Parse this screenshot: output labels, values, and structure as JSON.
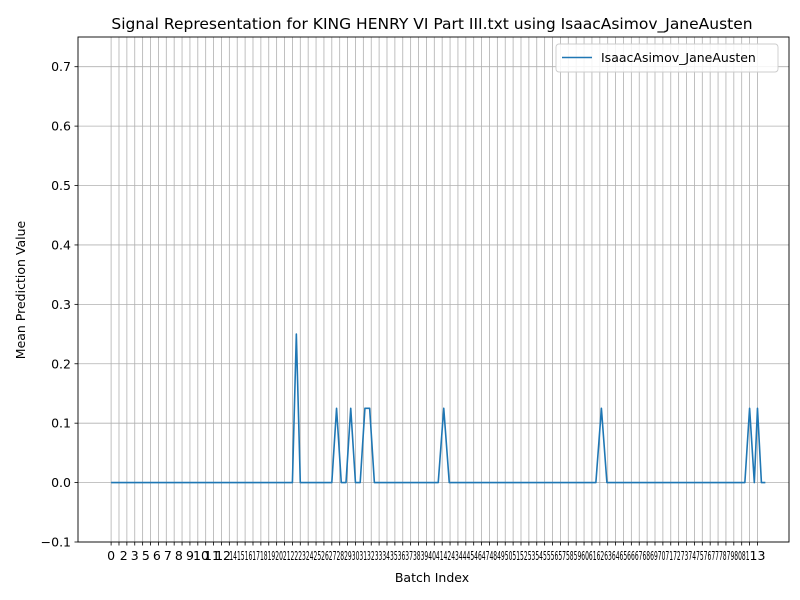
{
  "chart_data": {
    "type": "line",
    "title": "Signal Representation for KING HENRY VI Part III.txt using IsaacAsimov_JaneAusten",
    "xlabel": "Batch Index",
    "ylabel": "Mean Prediction Value",
    "ylim": [
      -0.1,
      0.75
    ],
    "xlim": [
      -4.2,
      86.0
    ],
    "y_ticks": [
      -0.1,
      0.0,
      0.1,
      0.2,
      0.3,
      0.4,
      0.5,
      0.6,
      0.7
    ],
    "y_tick_labels": [
      "−0.1",
      "0.0",
      "0.1",
      "0.2",
      "0.3",
      "0.4",
      "0.5",
      "0.6",
      "0.7"
    ],
    "x_tick_count": 83,
    "x_tick_labels_legible": [
      "0",
      "2",
      "3",
      "5",
      "6",
      "7",
      "8",
      "9",
      "10",
      "11",
      "12",
      "13"
    ],
    "grid": true,
    "legend_position": "top-right",
    "series": [
      {
        "name": "IsaacAsimov_JaneAusten",
        "color": "#1f77b4",
        "points": [
          [
            0,
            0.0
          ],
          [
            23,
            0.0
          ],
          [
            23.5,
            0.25
          ],
          [
            24,
            0.0
          ],
          [
            28,
            0.0
          ],
          [
            28.6,
            0.125
          ],
          [
            29.2,
            0.0
          ],
          [
            29.8,
            0.0
          ],
          [
            30.4,
            0.125
          ],
          [
            31,
            0.0
          ],
          [
            31.6,
            0.0
          ],
          [
            32.2,
            0.125
          ],
          [
            32.8,
            0.125
          ],
          [
            33.4,
            0.0
          ],
          [
            41.5,
            0.0
          ],
          [
            42.2,
            0.125
          ],
          [
            42.9,
            0.0
          ],
          [
            61.5,
            0.0
          ],
          [
            62.2,
            0.125
          ],
          [
            62.9,
            0.0
          ],
          [
            80.4,
            0.0
          ],
          [
            81.0,
            0.125
          ],
          [
            81.6,
            0.0
          ],
          [
            82.0,
            0.125
          ],
          [
            82.5,
            0.0
          ],
          [
            83.0,
            0.0
          ]
        ]
      }
    ]
  }
}
